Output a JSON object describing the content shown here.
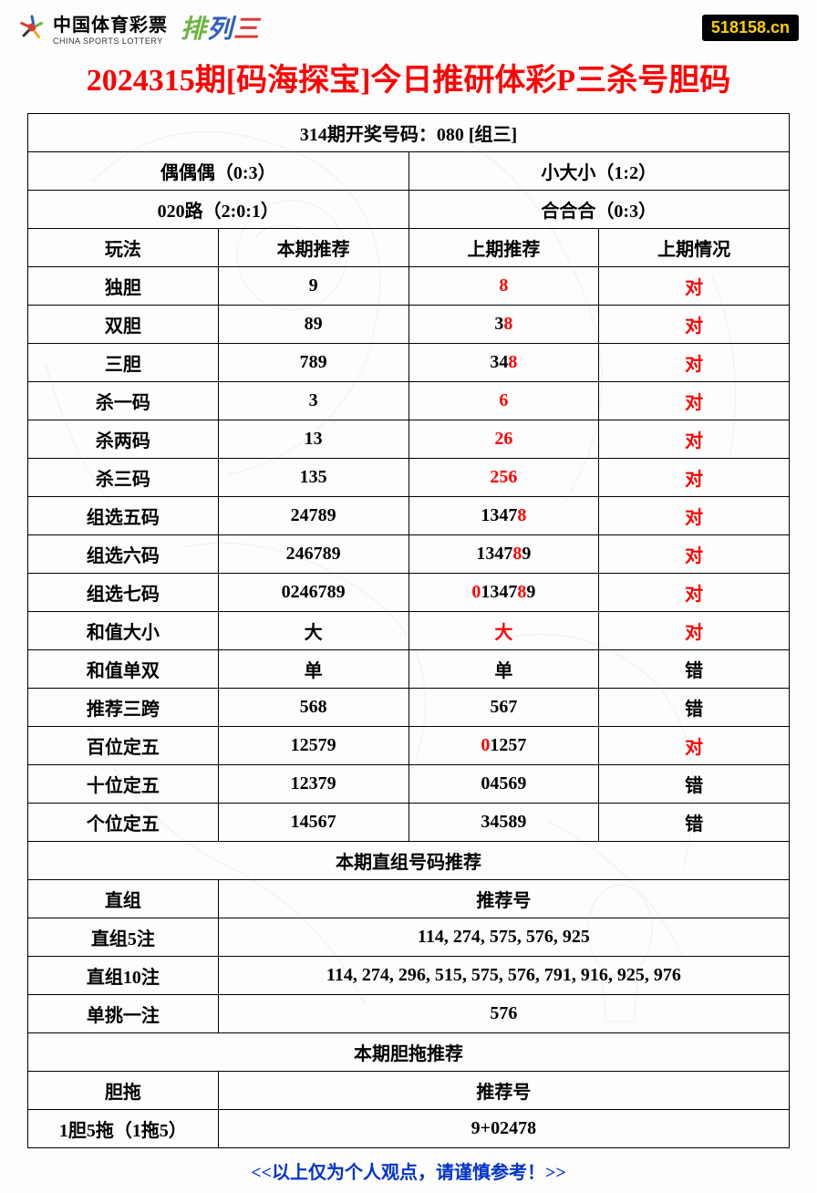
{
  "header": {
    "logo_cn": "中国体育彩票",
    "logo_en": "CHINA SPORTS LOTTERY",
    "pailiesan_chars": [
      {
        "char": "排",
        "color": "#6bb43f"
      },
      {
        "char": "列",
        "color": "#2e5fbc"
      },
      {
        "char": "三",
        "color": "#e23838"
      }
    ],
    "badge": "518158.cn",
    "badge_bg": "#000000",
    "badge_fg": "#ffd000"
  },
  "title": "2024315期[码海探宝]今日推研体彩P三杀号胆码",
  "title_color": "#ff0000",
  "section1": {
    "draw_info": "314期开奖号码：080 [组三]",
    "row2": [
      "偶偶偶（0:3）",
      "小大小（1:2）"
    ],
    "row3": [
      "020路（2:0:1）",
      "合合合（0:3）"
    ]
  },
  "columns": [
    "玩法",
    "本期推荐",
    "上期推荐",
    "上期情况"
  ],
  "rows": [
    {
      "play": "独胆",
      "current": "9",
      "prev": [
        {
          "t": "8",
          "r": 1
        }
      ],
      "result": "对",
      "result_red": 1
    },
    {
      "play": "双胆",
      "current": "89",
      "prev": [
        {
          "t": "3",
          "r": 0
        },
        {
          "t": "8",
          "r": 1
        }
      ],
      "result": "对",
      "result_red": 1
    },
    {
      "play": "三胆",
      "current": "789",
      "prev": [
        {
          "t": "34",
          "r": 0
        },
        {
          "t": "8",
          "r": 1
        }
      ],
      "result": "对",
      "result_red": 1
    },
    {
      "play": "杀一码",
      "current": "3",
      "prev": [
        {
          "t": "6",
          "r": 1
        }
      ],
      "result": "对",
      "result_red": 1
    },
    {
      "play": "杀两码",
      "current": "13",
      "prev": [
        {
          "t": "26",
          "r": 1
        }
      ],
      "result": "对",
      "result_red": 1
    },
    {
      "play": "杀三码",
      "current": "135",
      "prev": [
        {
          "t": "256",
          "r": 1
        }
      ],
      "result": "对",
      "result_red": 1
    },
    {
      "play": "组选五码",
      "current": "24789",
      "prev": [
        {
          "t": "1347",
          "r": 0
        },
        {
          "t": "8",
          "r": 1
        }
      ],
      "result": "对",
      "result_red": 1
    },
    {
      "play": "组选六码",
      "current": "246789",
      "prev": [
        {
          "t": "1347",
          "r": 0
        },
        {
          "t": "8",
          "r": 1
        },
        {
          "t": "9",
          "r": 0
        }
      ],
      "result": "对",
      "result_red": 1
    },
    {
      "play": "组选七码",
      "current": "0246789",
      "prev": [
        {
          "t": "0",
          "r": 1
        },
        {
          "t": "1347",
          "r": 0
        },
        {
          "t": "8",
          "r": 1
        },
        {
          "t": "9",
          "r": 0
        }
      ],
      "result": "对",
      "result_red": 1
    },
    {
      "play": "和值大小",
      "current": "大",
      "prev": [
        {
          "t": "大",
          "r": 1
        }
      ],
      "result": "对",
      "result_red": 1
    },
    {
      "play": "和值单双",
      "current": "单",
      "prev": [
        {
          "t": "单",
          "r": 0
        }
      ],
      "result": "错",
      "result_red": 0
    },
    {
      "play": "推荐三跨",
      "current": "568",
      "prev": [
        {
          "t": "567",
          "r": 0
        }
      ],
      "result": "错",
      "result_red": 0
    },
    {
      "play": "百位定五",
      "current": "12579",
      "prev": [
        {
          "t": "0",
          "r": 1
        },
        {
          "t": "1257",
          "r": 0
        }
      ],
      "result": "对",
      "result_red": 1
    },
    {
      "play": "十位定五",
      "current": "12379",
      "prev": [
        {
          "t": "04569",
          "r": 0
        }
      ],
      "result": "错",
      "result_red": 0
    },
    {
      "play": "个位定五",
      "current": "14567",
      "prev": [
        {
          "t": "34589",
          "r": 0
        }
      ],
      "result": "错",
      "result_red": 0
    }
  ],
  "section2": {
    "title": "本期直组号码推荐",
    "cols": [
      "直组",
      "推荐号"
    ],
    "rows": [
      {
        "label": "直组5注",
        "val": "114, 274, 575, 576, 925"
      },
      {
        "label": "直组10注",
        "val": "114, 274, 296, 515, 575, 576, 791, 916, 925, 976"
      },
      {
        "label": "单挑一注",
        "val": "576"
      }
    ]
  },
  "section3": {
    "title": "本期胆拖推荐",
    "cols": [
      "胆拖",
      "推荐号"
    ],
    "rows": [
      {
        "label": "1胆5拖（1拖5）",
        "val": "9+02478"
      }
    ]
  },
  "footer": "<<以上仅为个人观点，请谨慎参考！>>",
  "footer_color": "#0033cc",
  "style": {
    "body_width": 896,
    "body_height": 1190,
    "border_color": "#000000",
    "cell_fontsize": 20,
    "title_fontsize": 34,
    "red": "#ff0000"
  }
}
